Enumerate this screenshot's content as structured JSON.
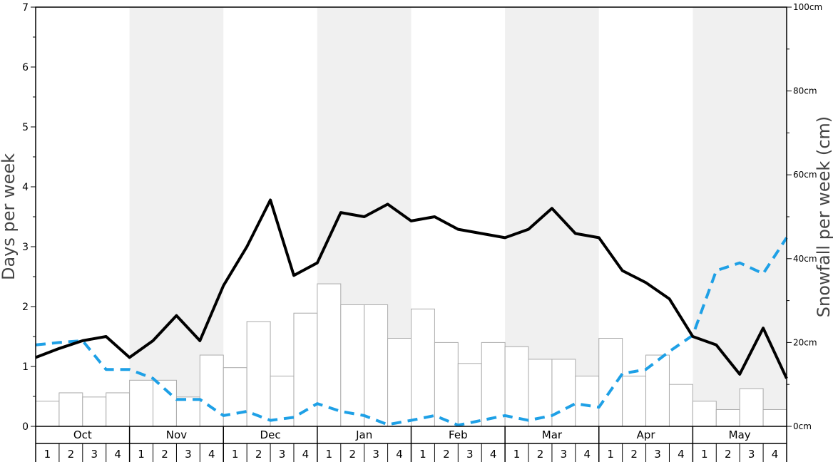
{
  "chart_data": {
    "type": "bar+line",
    "ylabel_left": "Days per week",
    "ylabel_right": "Snowfall per week (cm)",
    "ylim_left": [
      0,
      7
    ],
    "ylim_right": [
      0,
      100
    ],
    "left_ticks": [
      "0",
      "1",
      "2",
      "3",
      "4",
      "5",
      "6",
      "7"
    ],
    "right_ticks": [
      "0cm",
      "20cm",
      "40cm",
      "60cm",
      "80cm",
      "100cm"
    ],
    "months": [
      "Oct",
      "Nov",
      "Dec",
      "Jan",
      "Feb",
      "Mar",
      "Apr",
      "May"
    ],
    "weeks": [
      "1",
      "2",
      "3",
      "4"
    ],
    "shaded_months": [
      "Nov",
      "Jan",
      "Mar",
      "May"
    ],
    "colors": {
      "bars_fill": "#ffffff",
      "bars_stroke": "#aaaaaa",
      "line_solid": "#000000",
      "line_dashed": "#1ea0e6",
      "shade": "#f0f0f0"
    },
    "snowfall_cm": [
      6,
      8,
      7,
      8,
      11,
      11,
      7,
      17,
      14,
      25,
      12,
      27,
      34,
      29,
      29,
      21,
      28,
      20,
      15,
      20,
      19,
      16,
      16,
      12,
      21,
      12,
      17,
      10,
      6,
      4,
      9,
      4
    ],
    "snow_days": [
      1.15,
      1.3,
      1.43,
      1.5,
      1.15,
      1.43,
      1.85,
      1.43,
      2.35,
      3.0,
      3.78,
      2.52,
      2.73,
      3.57,
      3.5,
      3.71,
      3.43,
      3.5,
      3.29,
      3.22,
      3.15,
      3.29,
      3.64,
      3.22,
      3.15,
      2.6,
      2.4,
      2.13,
      1.5,
      1.36,
      0.87,
      1.64,
      0.8
    ],
    "other_days": [
      1.36,
      1.4,
      1.43,
      0.95,
      0.95,
      0.8,
      0.45,
      0.45,
      0.18,
      0.25,
      0.1,
      0.15,
      0.38,
      0.25,
      0.18,
      0.03,
      0.1,
      0.18,
      0.02,
      0.1,
      0.18,
      0.1,
      0.18,
      0.38,
      0.32,
      0.88,
      0.95,
      1.25,
      1.52,
      2.6,
      2.73,
      2.55,
      3.15
    ]
  }
}
